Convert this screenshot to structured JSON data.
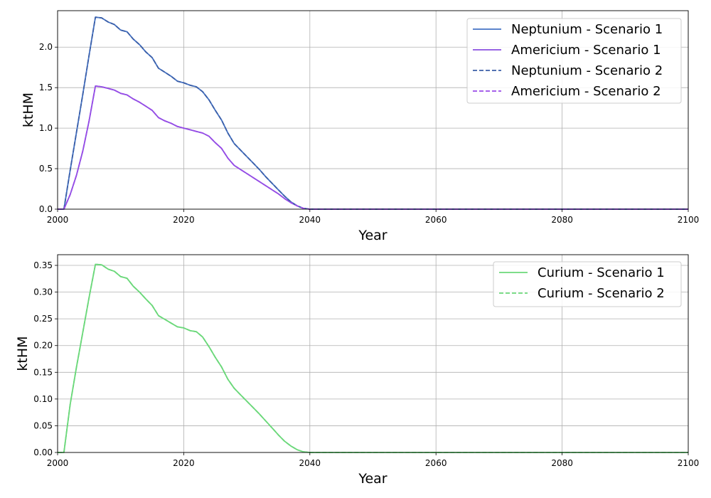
{
  "chart_data": [
    {
      "type": "line",
      "xlabel": "Year",
      "ylabel": "ktHM",
      "xlim": [
        2000,
        2100
      ],
      "ylim": [
        0,
        2.45
      ],
      "xticks": [
        "2000",
        "2020",
        "2040",
        "2060",
        "2080",
        "2100"
      ],
      "yticks": [
        "0.0",
        "0.5",
        "1.0",
        "1.5",
        "2.0"
      ],
      "grid": true,
      "legend_position": "top-right",
      "x": [
        2000,
        2001,
        2002,
        2003,
        2004,
        2005,
        2006,
        2007,
        2008,
        2009,
        2010,
        2011,
        2012,
        2013,
        2014,
        2015,
        2016,
        2017,
        2018,
        2019,
        2020,
        2021,
        2022,
        2023,
        2024,
        2025,
        2026,
        2027,
        2028,
        2029,
        2030,
        2031,
        2032,
        2033,
        2034,
        2035,
        2036,
        2037,
        2038,
        2039,
        2040,
        2050,
        2060,
        2070,
        2080,
        2090,
        2100
      ],
      "series": [
        {
          "name": "Neptunium - Scenario 1",
          "color": "#4472c4",
          "style": "solid",
          "values": [
            0,
            0,
            0.48,
            0.95,
            1.42,
            1.9,
            2.37,
            2.36,
            2.31,
            2.28,
            2.21,
            2.19,
            2.1,
            2.03,
            1.94,
            1.87,
            1.74,
            1.69,
            1.64,
            1.58,
            1.56,
            1.53,
            1.51,
            1.45,
            1.35,
            1.22,
            1.1,
            0.94,
            0.81,
            0.73,
            0.65,
            0.57,
            0.49,
            0.4,
            0.32,
            0.24,
            0.16,
            0.09,
            0.04,
            0.01,
            0,
            0,
            0,
            0,
            0,
            0,
            0
          ]
        },
        {
          "name": "Americium - Scenario 1",
          "color": "#8a4fe0",
          "style": "solid",
          "values": [
            0,
            0,
            0.18,
            0.42,
            0.72,
            1.09,
            1.52,
            1.51,
            1.49,
            1.47,
            1.43,
            1.41,
            1.36,
            1.32,
            1.27,
            1.22,
            1.13,
            1.09,
            1.06,
            1.02,
            1.0,
            0.98,
            0.96,
            0.94,
            0.9,
            0.82,
            0.75,
            0.63,
            0.54,
            0.49,
            0.44,
            0.39,
            0.34,
            0.29,
            0.24,
            0.19,
            0.13,
            0.08,
            0.04,
            0.01,
            0,
            0,
            0,
            0,
            0,
            0,
            0
          ]
        },
        {
          "name": "Neptunium - Scenario 2",
          "color": "#3b5fa8",
          "style": "dashed",
          "values": [
            0,
            0,
            0.48,
            0.95,
            1.42,
            1.9,
            2.37,
            2.36,
            2.31,
            2.28,
            2.21,
            2.19,
            2.1,
            2.03,
            1.94,
            1.87,
            1.74,
            1.69,
            1.64,
            1.58,
            1.56,
            1.53,
            1.51,
            1.45,
            1.35,
            1.22,
            1.1,
            0.94,
            0.81,
            0.73,
            0.65,
            0.57,
            0.49,
            0.4,
            0.32,
            0.24,
            0.16,
            0.09,
            0.04,
            0.01,
            0,
            0,
            0,
            0,
            0,
            0,
            0
          ]
        },
        {
          "name": "Americium - Scenario 2",
          "color": "#9a4be8",
          "style": "dashed",
          "values": [
            0,
            0,
            0.18,
            0.42,
            0.72,
            1.09,
            1.52,
            1.51,
            1.49,
            1.47,
            1.43,
            1.41,
            1.36,
            1.32,
            1.27,
            1.22,
            1.13,
            1.09,
            1.06,
            1.02,
            1.0,
            0.98,
            0.96,
            0.94,
            0.9,
            0.82,
            0.75,
            0.63,
            0.54,
            0.49,
            0.44,
            0.39,
            0.34,
            0.29,
            0.24,
            0.19,
            0.13,
            0.08,
            0.04,
            0.01,
            0,
            0,
            0,
            0,
            0,
            0,
            0
          ]
        }
      ]
    },
    {
      "type": "line",
      "xlabel": "Year",
      "ylabel": "ktHM",
      "xlim": [
        2000,
        2100
      ],
      "ylim": [
        0,
        0.37
      ],
      "xticks": [
        "2000",
        "2020",
        "2040",
        "2060",
        "2080",
        "2100"
      ],
      "yticks": [
        "0.00",
        "0.05",
        "0.10",
        "0.15",
        "0.20",
        "0.25",
        "0.30",
        "0.35"
      ],
      "grid": true,
      "legend_position": "top-right",
      "x": [
        2000,
        2001,
        2002,
        2003,
        2004,
        2005,
        2006,
        2007,
        2008,
        2009,
        2010,
        2011,
        2012,
        2013,
        2014,
        2015,
        2016,
        2017,
        2018,
        2019,
        2020,
        2021,
        2022,
        2023,
        2024,
        2025,
        2026,
        2027,
        2028,
        2029,
        2030,
        2031,
        2032,
        2033,
        2034,
        2035,
        2036,
        2037,
        2038,
        2039,
        2040,
        2050,
        2060,
        2070,
        2080,
        2090,
        2100
      ],
      "series": [
        {
          "name": "Curium - Scenario 1",
          "color": "#6bd87a",
          "style": "solid",
          "values": [
            0,
            0,
            0.09,
            0.16,
            0.225,
            0.29,
            0.352,
            0.351,
            0.343,
            0.339,
            0.329,
            0.326,
            0.311,
            0.3,
            0.287,
            0.275,
            0.256,
            0.249,
            0.242,
            0.235,
            0.233,
            0.228,
            0.226,
            0.216,
            0.198,
            0.178,
            0.16,
            0.137,
            0.12,
            0.108,
            0.096,
            0.084,
            0.072,
            0.059,
            0.046,
            0.033,
            0.021,
            0.012,
            0.005,
            0.001,
            0,
            0,
            0,
            0,
            0,
            0,
            0
          ]
        },
        {
          "name": "Curium - Scenario 2",
          "color": "#6bd87a",
          "style": "dashed",
          "values": [
            0,
            0,
            0.09,
            0.16,
            0.225,
            0.29,
            0.352,
            0.351,
            0.343,
            0.339,
            0.329,
            0.326,
            0.311,
            0.3,
            0.287,
            0.275,
            0.256,
            0.249,
            0.242,
            0.235,
            0.233,
            0.228,
            0.226,
            0.216,
            0.198,
            0.178,
            0.16,
            0.137,
            0.12,
            0.108,
            0.096,
            0.084,
            0.072,
            0.059,
            0.046,
            0.033,
            0.021,
            0.012,
            0.005,
            0.001,
            0,
            0,
            0,
            0,
            0,
            0,
            0
          ]
        }
      ]
    }
  ]
}
